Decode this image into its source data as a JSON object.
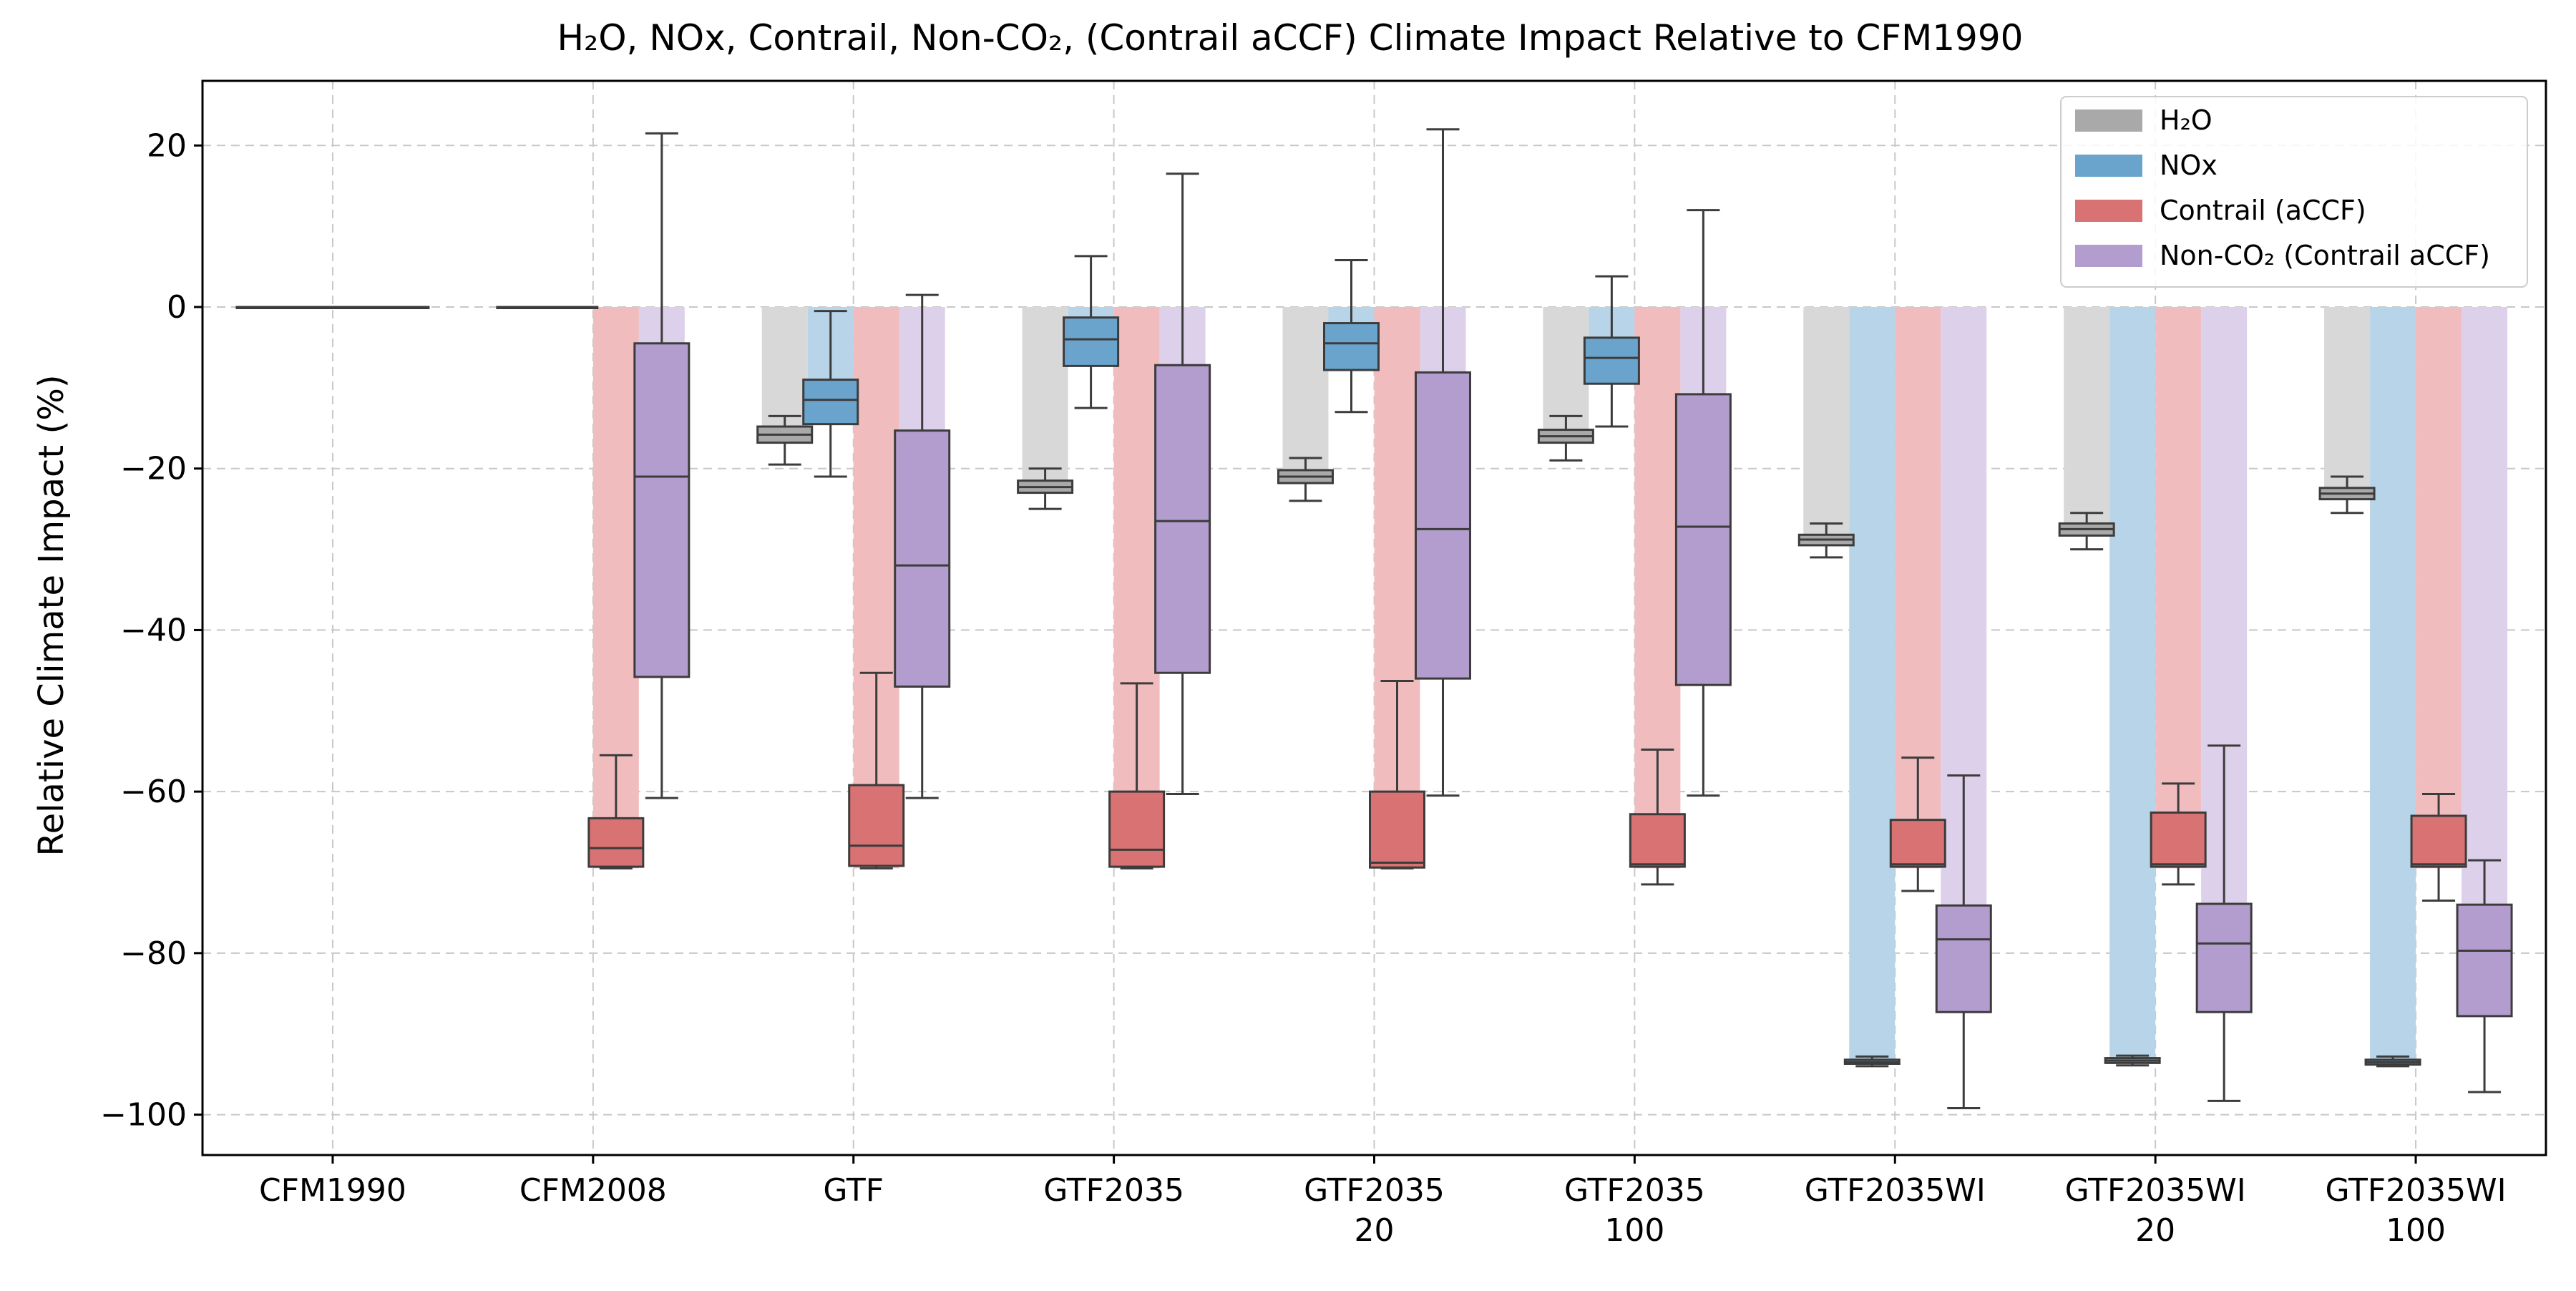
{
  "chart_data": {
    "type": "bar",
    "title": "H₂O, NOx, Contrail, Non-CO₂, (Contrail aCCF) Climate Impact Relative to CFM1990",
    "xlabel": "",
    "ylabel": "Relative Climate Impact (%)",
    "ylim": [
      -105,
      28
    ],
    "yticks": [
      20,
      0,
      -20,
      -40,
      -60,
      -80,
      -100
    ],
    "ytick_labels": [
      "20",
      "0",
      "−20",
      "−40",
      "−60",
      "−80",
      "−100"
    ],
    "grid": true,
    "legend_position": "top-right",
    "categories": [
      [
        "CFM1990"
      ],
      [
        "CFM2008"
      ],
      [
        "GTF"
      ],
      [
        "GTF2035"
      ],
      [
        "GTF2035",
        "20"
      ],
      [
        "GTF2035",
        "100"
      ],
      [
        "GTF2035WI"
      ],
      [
        "GTF2035WI",
        "20"
      ],
      [
        "GTF2035WI",
        "100"
      ]
    ],
    "series": [
      {
        "name": "H₂O",
        "bar_color": "#d8d8d8",
        "box_color": "#a9a9a9",
        "bars": [
          0,
          0,
          -15.8,
          -22.3,
          -21,
          -16,
          -28.8,
          -27.5,
          -23.1
        ],
        "boxes": [
          {
            "wlo": 0,
            "q1": 0,
            "med": 0,
            "q3": 0,
            "whi": 0
          },
          {
            "wlo": 0,
            "q1": 0,
            "med": 0,
            "q3": 0,
            "whi": 0
          },
          {
            "wlo": -19.5,
            "q1": -16.8,
            "med": -15.8,
            "q3": -14.8,
            "whi": -13.5
          },
          {
            "wlo": -25,
            "q1": -23,
            "med": -22.3,
            "q3": -21.5,
            "whi": -20
          },
          {
            "wlo": -24,
            "q1": -21.8,
            "med": -21,
            "q3": -20.2,
            "whi": -18.7
          },
          {
            "wlo": -19,
            "q1": -16.8,
            "med": -16,
            "q3": -15.2,
            "whi": -13.5
          },
          {
            "wlo": -31,
            "q1": -29.5,
            "med": -28.8,
            "q3": -28.2,
            "whi": -26.8
          },
          {
            "wlo": -30,
            "q1": -28.3,
            "med": -27.5,
            "q3": -26.8,
            "whi": -25.5
          },
          {
            "wlo": -25.5,
            "q1": -23.8,
            "med": -23.1,
            "q3": -22.4,
            "whi": -21
          }
        ]
      },
      {
        "name": "NOx",
        "bar_color": "#b8d4e8",
        "box_color": "#6aa4cc",
        "bars": [
          0,
          0,
          -11.5,
          -4,
          -4.5,
          -6.3,
          -93.5,
          -93.3,
          -93.5
        ],
        "boxes": [
          {
            "wlo": 0,
            "q1": 0,
            "med": 0,
            "q3": 0,
            "whi": 0
          },
          {
            "wlo": 0,
            "q1": 0,
            "med": 0,
            "q3": 0,
            "whi": 0
          },
          {
            "wlo": -21,
            "q1": -14.5,
            "med": -11.5,
            "q3": -9,
            "whi": -0.5
          },
          {
            "wlo": -12.5,
            "q1": -7.3,
            "med": -4,
            "q3": -1.3,
            "whi": 6.3
          },
          {
            "wlo": -13,
            "q1": -7.8,
            "med": -4.5,
            "q3": -2,
            "whi": 5.8
          },
          {
            "wlo": -14.8,
            "q1": -9.5,
            "med": -6.3,
            "q3": -3.8,
            "whi": 3.8
          },
          {
            "wlo": -94,
            "q1": -93.7,
            "med": -93.5,
            "q3": -93.2,
            "whi": -92.8
          },
          {
            "wlo": -93.9,
            "q1": -93.6,
            "med": -93.3,
            "q3": -93,
            "whi": -92.7
          },
          {
            "wlo": -94,
            "q1": -93.8,
            "med": -93.5,
            "q3": -93.2,
            "whi": -92.8
          }
        ]
      },
      {
        "name": "Contrail (aCCF)",
        "bar_color": "#f1bcbe",
        "box_color": "#d97272",
        "bars": [
          0,
          -69.5,
          -69.5,
          -69.5,
          -69.5,
          -69.5,
          -69.5,
          -69.5,
          -69.5
        ],
        "boxes": [
          {
            "wlo": 0,
            "q1": 0,
            "med": 0,
            "q3": 0,
            "whi": 0
          },
          {
            "wlo": -69.5,
            "q1": -69.3,
            "med": -67,
            "q3": -63.3,
            "whi": -55.5
          },
          {
            "wlo": -69.5,
            "q1": -69.2,
            "med": -66.7,
            "q3": -59.2,
            "whi": -45.3
          },
          {
            "wlo": -69.5,
            "q1": -69.3,
            "med": -67.2,
            "q3": -60,
            "whi": -46.6
          },
          {
            "wlo": -69.5,
            "q1": -69.4,
            "med": -68.8,
            "q3": -60,
            "whi": -46.3
          },
          {
            "wlo": -71.5,
            "q1": -69.3,
            "med": -69,
            "q3": -62.8,
            "whi": -54.8
          },
          {
            "wlo": -72.3,
            "q1": -69.3,
            "med": -69,
            "q3": -63.5,
            "whi": -55.8
          },
          {
            "wlo": -71.5,
            "q1": -69.3,
            "med": -69,
            "q3": -62.6,
            "whi": -59
          },
          {
            "wlo": -73.5,
            "q1": -69.3,
            "med": -69,
            "q3": -63,
            "whi": -60.3
          }
        ]
      },
      {
        "name": "Non-CO₂ (Contrail aCCF)",
        "bar_color": "#ddd0ea",
        "box_color": "#b29dce",
        "bars": [
          0,
          -21,
          -32,
          -26.5,
          -27.5,
          -27.2,
          -78.3,
          -78.8,
          -79.7
        ],
        "boxes": [
          {
            "wlo": 0,
            "q1": 0,
            "med": 0,
            "q3": 0,
            "whi": 0
          },
          {
            "wlo": -60.8,
            "q1": -45.8,
            "med": -21,
            "q3": -4.5,
            "whi": 21.5
          },
          {
            "wlo": -60.8,
            "q1": -47,
            "med": -32,
            "q3": -15.3,
            "whi": 1.5
          },
          {
            "wlo": -60.3,
            "q1": -45.3,
            "med": -26.5,
            "q3": -7.2,
            "whi": 16.5
          },
          {
            "wlo": -60.5,
            "q1": -46,
            "med": -27.5,
            "q3": -8.1,
            "whi": 22
          },
          {
            "wlo": -60.5,
            "q1": -46.8,
            "med": -27.2,
            "q3": -10.8,
            "whi": 12
          },
          {
            "wlo": -99.2,
            "q1": -87.3,
            "med": -78.3,
            "q3": -74.1,
            "whi": -58
          },
          {
            "wlo": -98.3,
            "q1": -87.3,
            "med": -78.8,
            "q3": -73.9,
            "whi": -54.3
          },
          {
            "wlo": -97.2,
            "q1": -87.8,
            "med": -79.7,
            "q3": -74,
            "whi": -68.5
          }
        ]
      }
    ]
  }
}
